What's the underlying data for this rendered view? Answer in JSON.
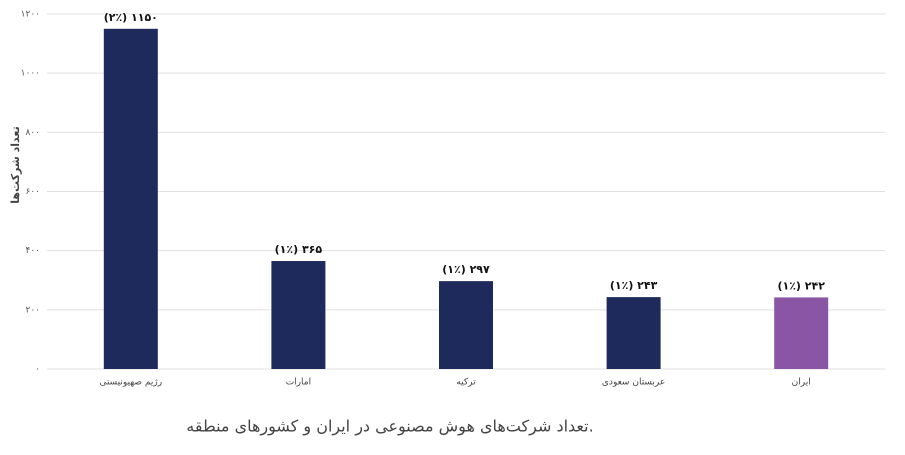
{
  "chart_data": {
    "type": "bar",
    "y_label": "تعداد شرکت‌ها",
    "caption": "تعداد شرکت‌های هوش مصنوعی در ایران و کشورهای منطقه.",
    "categories": [
      "رژیم صهیونیستی",
      "امارات",
      "ترکیه",
      "عربستان سعودی",
      "ایران"
    ],
    "values": [
      1150,
      365,
      297,
      243,
      242
    ],
    "value_labels": [
      "(۲٪) ۱۱۵۰",
      "(۱٪) ۳۶۵",
      "(۱٪) ۲۹۷",
      "(۱٪) ۲۴۳",
      "(۱٪) ۲۴۲"
    ],
    "colors": [
      "#1f2a5c",
      "#1f2a5c",
      "#1f2a5c",
      "#1f2a5c",
      "#8b55a5"
    ],
    "ylim": [
      0,
      1200
    ],
    "yticks": [
      {
        "value": 0,
        "label": "۰"
      },
      {
        "value": 200,
        "label": "۲۰۰"
      },
      {
        "value": 400,
        "label": "۴۰۰"
      },
      {
        "value": 600,
        "label": "۶۰۰"
      },
      {
        "value": 800,
        "label": "۸۰۰"
      },
      {
        "value": 1000,
        "label": "۱۰۰۰"
      },
      {
        "value": 1200,
        "label": "۱۲۰۰"
      }
    ],
    "grid": true
  }
}
